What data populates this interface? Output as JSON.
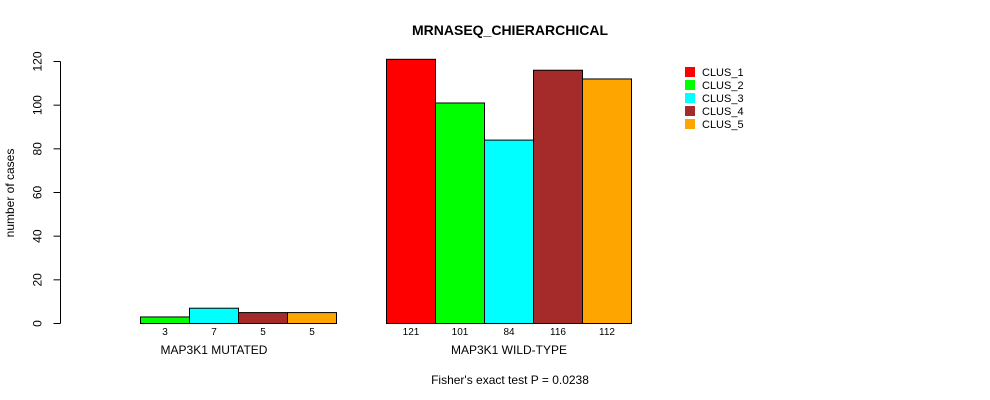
{
  "chart_data": {
    "type": "bar",
    "title": "MRNASEQ_CHIERARCHICAL",
    "ylabel": "number of cases",
    "xlabel": "",
    "ylim": [
      0,
      120
    ],
    "yticks": [
      0,
      20,
      40,
      60,
      80,
      100,
      120
    ],
    "categories": [
      "MAP3K1 MUTATED",
      "MAP3K1 WILD-TYPE"
    ],
    "series": [
      {
        "name": "CLUS_1",
        "color": "#ff0000",
        "values": [
          0,
          121
        ]
      },
      {
        "name": "CLUS_2",
        "color": "#00ff00",
        "values": [
          3,
          101
        ]
      },
      {
        "name": "CLUS_3",
        "color": "#00ffff",
        "values": [
          7,
          84
        ]
      },
      {
        "name": "CLUS_4",
        "color": "#a52a2a",
        "values": [
          5,
          116
        ]
      },
      {
        "name": "CLUS_5",
        "color": "#ffa500",
        "values": [
          5,
          112
        ]
      }
    ],
    "count_labels": [
      [
        "",
        "3",
        "7",
        "5",
        "5"
      ],
      [
        "121",
        "101",
        "84",
        "116",
        "112"
      ]
    ],
    "legend_position": "right",
    "grid": false,
    "footnote": "Fisher's exact test P = 0.0238"
  }
}
